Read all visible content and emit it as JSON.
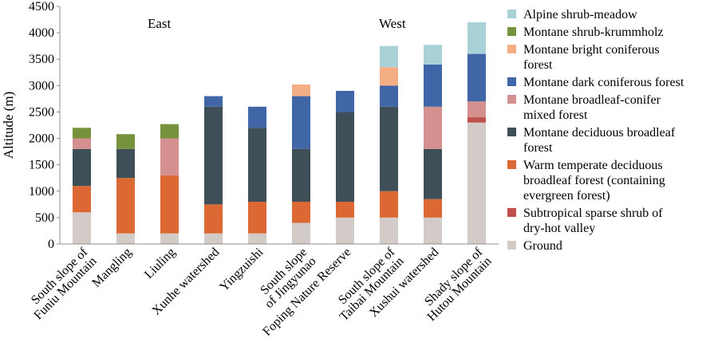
{
  "chart_data": {
    "type": "bar",
    "stacked": true,
    "title": "",
    "ylabel": "Altitude (m)",
    "xlabel": "",
    "ylim": [
      0,
      4500
    ],
    "yticks": [
      0,
      500,
      1000,
      1500,
      2000,
      2500,
      3000,
      3500,
      4000,
      4500
    ],
    "grid": false,
    "legend_position": "right",
    "annotations": [
      "East",
      "West"
    ],
    "categories": [
      "South slope of Funiu Mountain",
      "Mangling",
      "Liuling",
      "Xunhe watershed",
      "Yingzuishi",
      "South slope of Jingyunao",
      "Foping Nature Reserve",
      "South slope of Taibai Mountain",
      "Xushui watershed",
      "Shady slope of Hutou Mountain"
    ],
    "category_lines": [
      [
        "South slope of",
        "Funiu Mountain"
      ],
      [
        "Mangling"
      ],
      [
        "Liuling"
      ],
      [
        "Xunhe watershed"
      ],
      [
        "Yingzuishi"
      ],
      [
        "South slope",
        "of Jingyunao"
      ],
      [
        "Foping Nature Reserve"
      ],
      [
        "South slope of",
        "Taibai Mountain"
      ],
      [
        "Xushui watershed"
      ],
      [
        "Shady slope of",
        "Hutou Mountain"
      ]
    ],
    "series": [
      {
        "name": "Ground",
        "color": "#d3cbc7",
        "legend_lines": [
          "Ground"
        ],
        "values": [
          600,
          200,
          200,
          200,
          200,
          400,
          500,
          500,
          500,
          2300
        ]
      },
      {
        "name": "Subtropical sparse shrub of dry-hot valley",
        "color": "#c0504d",
        "legend_lines": [
          "Subtropical sparse shrub of",
          "dry-hot valley"
        ],
        "values": [
          0,
          0,
          0,
          0,
          0,
          0,
          0,
          0,
          0,
          100
        ]
      },
      {
        "name": "Warm temperate deciduous broadleaf forest (containing evergreen forest)",
        "color": "#dc6934",
        "legend_lines": [
          "Warm temperate deciduous",
          "broadleaf forest (containing",
          "evergreen forest)"
        ],
        "values": [
          500,
          1050,
          1100,
          550,
          600,
          400,
          300,
          500,
          350,
          0
        ]
      },
      {
        "name": "Montane deciduous broadleaf forest",
        "color": "#3e4f58",
        "legend_lines": [
          "Montane deciduous broadleaf",
          "forest"
        ],
        "values": [
          700,
          550,
          0,
          1850,
          1400,
          1000,
          1700,
          1600,
          950,
          0
        ]
      },
      {
        "name": "Montane broadleaf-conifer mixed forest",
        "color": "#d4908e",
        "legend_lines": [
          "Montane broadleaf-conifer",
          "mixed forest"
        ],
        "values": [
          200,
          0,
          700,
          0,
          0,
          0,
          0,
          0,
          800,
          300
        ]
      },
      {
        "name": "Montane dark coniferous forest",
        "color": "#4066a8",
        "legend_lines": [
          "Montane dark coniferous forest"
        ],
        "values": [
          0,
          0,
          0,
          200,
          400,
          1000,
          400,
          400,
          800,
          900
        ]
      },
      {
        "name": "Montane bright coniferous forest",
        "color": "#f4ae84",
        "legend_lines": [
          "Montane bright coniferous",
          "forest"
        ],
        "values": [
          0,
          0,
          0,
          0,
          0,
          220,
          0,
          350,
          0,
          0
        ]
      },
      {
        "name": "Montane shrub-krummholz",
        "color": "#76923c",
        "legend_lines": [
          "Montane shrub-krummholz"
        ],
        "values": [
          200,
          280,
          270,
          0,
          0,
          0,
          0,
          0,
          0,
          0
        ]
      },
      {
        "name": "Alpine shrub-meadow",
        "color": "#a9d2d8",
        "legend_lines": [
          "Alpine shrub-meadow"
        ],
        "values": [
          0,
          0,
          0,
          0,
          0,
          0,
          0,
          400,
          370,
          600
        ]
      }
    ]
  }
}
